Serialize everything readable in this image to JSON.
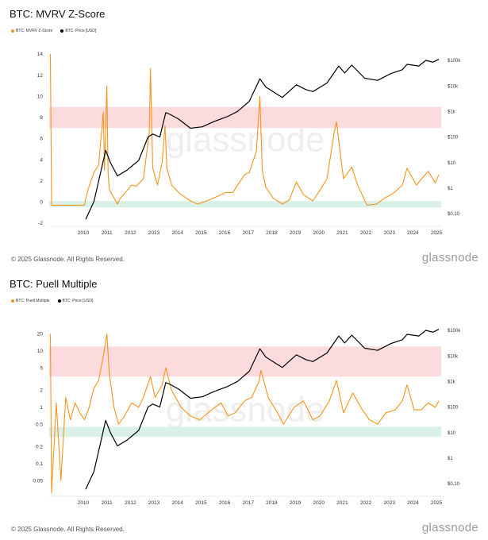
{
  "footer_text": "© 2025 Glassnode. All Rights Reserved.",
  "brand": "glassnode",
  "watermark": "glassnode",
  "colors": {
    "metric": "#f7931a",
    "price": "#000000",
    "red_band": "#fbd5d8",
    "green_band": "#d6f0e4"
  },
  "chart_data": [
    {
      "type": "line",
      "title": "BTC: MVRV Z-Score",
      "years": [
        "2010",
        "2011",
        "2012",
        "2013",
        "2014",
        "2015",
        "2016",
        "2017",
        "2018",
        "2019",
        "2020",
        "2021",
        "2022",
        "2023",
        "2024",
        "2025"
      ],
      "left_axis": {
        "ticks": [
          "14",
          "12",
          "10",
          "8",
          "6",
          "4",
          "2",
          "0",
          "-2"
        ],
        "range": [
          -2,
          14
        ]
      },
      "right_axis": {
        "scale": "log",
        "ticks": [
          "$100k",
          "$10k",
          "$1k",
          "$100",
          "$10",
          "$1",
          "$0.10"
        ]
      },
      "bands": {
        "red": [
          7,
          9
        ],
        "green": [
          -0.5,
          0.1
        ]
      },
      "series": [
        {
          "name": "BTC: MVRV Z-Score",
          "x": [
            2009.05,
            2009.1,
            2010.5,
            2010.55,
            2010.7,
            2010.9,
            2011.1,
            2011.3,
            2011.35,
            2011.45,
            2011.5,
            2011.55,
            2011.7,
            2011.9,
            2012.0,
            2012.2,
            2012.5,
            2012.7,
            2013.0,
            2013.25,
            2013.3,
            2013.4,
            2013.6,
            2013.8,
            2013.92,
            2014.0,
            2014.2,
            2014.5,
            2014.8,
            2015.0,
            2015.3,
            2015.7,
            2016.0,
            2016.5,
            2016.8,
            2017.0,
            2017.3,
            2017.5,
            2017.8,
            2017.95,
            2018.05,
            2018.2,
            2018.5,
            2018.9,
            2019.2,
            2019.5,
            2019.8,
            2020.2,
            2020.5,
            2020.8,
            2021.1,
            2021.2,
            2021.5,
            2021.85,
            2022.1,
            2022.5,
            2022.9,
            2023.2,
            2023.6,
            2024.0,
            2024.2,
            2024.6,
            2024.9,
            2025.1,
            2025.4,
            2025.55
          ],
          "y": [
            14,
            -0.3,
            -0.3,
            0.3,
            1.5,
            2.8,
            3.5,
            8.5,
            3,
            11,
            2.8,
            1.2,
            0.6,
            -0.2,
            0.3,
            0.8,
            1.6,
            1.5,
            2.2,
            6.5,
            12.6,
            3.2,
            1.6,
            3.8,
            7.2,
            3.2,
            1.6,
            0.9,
            0.4,
            0.1,
            -0.2,
            0.1,
            0.4,
            0.9,
            0.9,
            1.6,
            2.6,
            2.8,
            4.8,
            10,
            3,
            1.4,
            0.4,
            -0.2,
            0.2,
            1.9,
            0.7,
            0.1,
            1.1,
            2.2,
            6.5,
            7.6,
            2.2,
            3.3,
            1.6,
            -0.3,
            -0.2,
            0.3,
            0.8,
            1.6,
            3.2,
            1.6,
            2.4,
            2.9,
            1.8,
            2.6
          ]
        },
        {
          "name": "BTC: Price [USD]",
          "x": [
            2010.55,
            2010.9,
            2011.4,
            2011.6,
            2011.9,
            2012.3,
            2012.8,
            2013.2,
            2013.4,
            2013.7,
            2013.95,
            2014.1,
            2014.5,
            2015.0,
            2015.5,
            2016.0,
            2016.6,
            2017.0,
            2017.5,
            2017.95,
            2018.2,
            2018.9,
            2019.5,
            2019.9,
            2020.2,
            2020.8,
            2021.3,
            2021.55,
            2021.85,
            2022.4,
            2022.95,
            2023.5,
            2024.0,
            2024.2,
            2024.7,
            2025.0,
            2025.3,
            2025.55
          ],
          "y": [
            0.06,
            0.3,
            30,
            10,
            3,
            5,
            12,
            100,
            130,
            100,
            900,
            800,
            500,
            220,
            250,
            400,
            650,
            1000,
            2500,
            19000,
            9000,
            3500,
            11000,
            7200,
            6000,
            13000,
            60000,
            32000,
            65000,
            20000,
            16500,
            30000,
            43000,
            70000,
            60000,
            100000,
            85000,
            110000
          ]
        }
      ]
    },
    {
      "type": "line",
      "title": "BTC: Puell Multiple",
      "years": [
        "2010",
        "2011",
        "2012",
        "2013",
        "2014",
        "2015",
        "2016",
        "2017",
        "2018",
        "2019",
        "2020",
        "2021",
        "2022",
        "2023",
        "2024",
        "2025"
      ],
      "left_axis": {
        "scale": "log",
        "ticks": [
          "20",
          "10",
          "5",
          "2",
          "1",
          "0.5",
          "0.2",
          "0.1",
          "0.05"
        ],
        "range": [
          0.03,
          30
        ]
      },
      "right_axis": {
        "scale": "log",
        "ticks": [
          "$100k",
          "$10k",
          "$1k",
          "$100",
          "$10",
          "$1",
          "$0.10"
        ]
      },
      "bands": {
        "red": [
          3.5,
          12
        ],
        "green": [
          0.3,
          0.45
        ]
      },
      "series": [
        {
          "name": "BTC: Puell Multiple",
          "x": [
            2009.05,
            2009.1,
            2009.3,
            2009.5,
            2009.7,
            2009.9,
            2010.1,
            2010.3,
            2010.5,
            2010.7,
            2010.9,
            2011.1,
            2011.3,
            2011.45,
            2011.55,
            2011.75,
            2011.95,
            2012.2,
            2012.5,
            2012.8,
            2013.0,
            2013.3,
            2013.5,
            2013.8,
            2013.95,
            2014.2,
            2014.6,
            2015.0,
            2015.4,
            2015.9,
            2016.3,
            2016.6,
            2016.9,
            2017.3,
            2017.6,
            2017.9,
            2018.0,
            2018.3,
            2018.7,
            2018.95,
            2019.4,
            2019.8,
            2020.2,
            2020.5,
            2020.9,
            2021.2,
            2021.5,
            2021.9,
            2022.3,
            2022.6,
            2022.95,
            2023.3,
            2023.7,
            2024.0,
            2024.2,
            2024.5,
            2024.8,
            2025.1,
            2025.4,
            2025.55
          ],
          "y": [
            20,
            0.03,
            1.2,
            0.05,
            1.5,
            0.6,
            1.2,
            0.8,
            0.6,
            1.0,
            2.2,
            3.0,
            8.0,
            20,
            4.0,
            1.0,
            0.5,
            0.7,
            1.2,
            1.0,
            1.5,
            3.5,
            1.5,
            2.5,
            5.0,
            2.0,
            1.0,
            0.7,
            0.6,
            0.9,
            1.2,
            0.7,
            0.8,
            1.3,
            1.5,
            2.8,
            4.5,
            1.5,
            0.8,
            0.5,
            1.0,
            1.3,
            0.6,
            0.7,
            1.3,
            3.0,
            0.8,
            1.8,
            0.9,
            0.6,
            0.5,
            0.8,
            0.9,
            1.3,
            2.5,
            0.9,
            0.9,
            1.2,
            1.0,
            1.3
          ]
        },
        {
          "name": "BTC: Price [USD]",
          "x": [
            2010.55,
            2010.9,
            2011.4,
            2011.6,
            2011.9,
            2012.3,
            2012.8,
            2013.2,
            2013.4,
            2013.7,
            2013.95,
            2014.1,
            2014.5,
            2015.0,
            2015.5,
            2016.0,
            2016.6,
            2017.0,
            2017.5,
            2017.95,
            2018.2,
            2018.9,
            2019.5,
            2019.9,
            2020.2,
            2020.8,
            2021.3,
            2021.55,
            2021.85,
            2022.4,
            2022.95,
            2023.5,
            2024.0,
            2024.2,
            2024.7,
            2025.0,
            2025.3,
            2025.55
          ],
          "y": [
            0.06,
            0.3,
            30,
            10,
            3,
            5,
            12,
            100,
            130,
            100,
            900,
            800,
            500,
            220,
            250,
            400,
            650,
            1000,
            2500,
            19000,
            9000,
            3500,
            11000,
            7200,
            6000,
            13000,
            60000,
            32000,
            65000,
            20000,
            16500,
            30000,
            43000,
            70000,
            60000,
            100000,
            85000,
            110000
          ]
        }
      ]
    }
  ]
}
